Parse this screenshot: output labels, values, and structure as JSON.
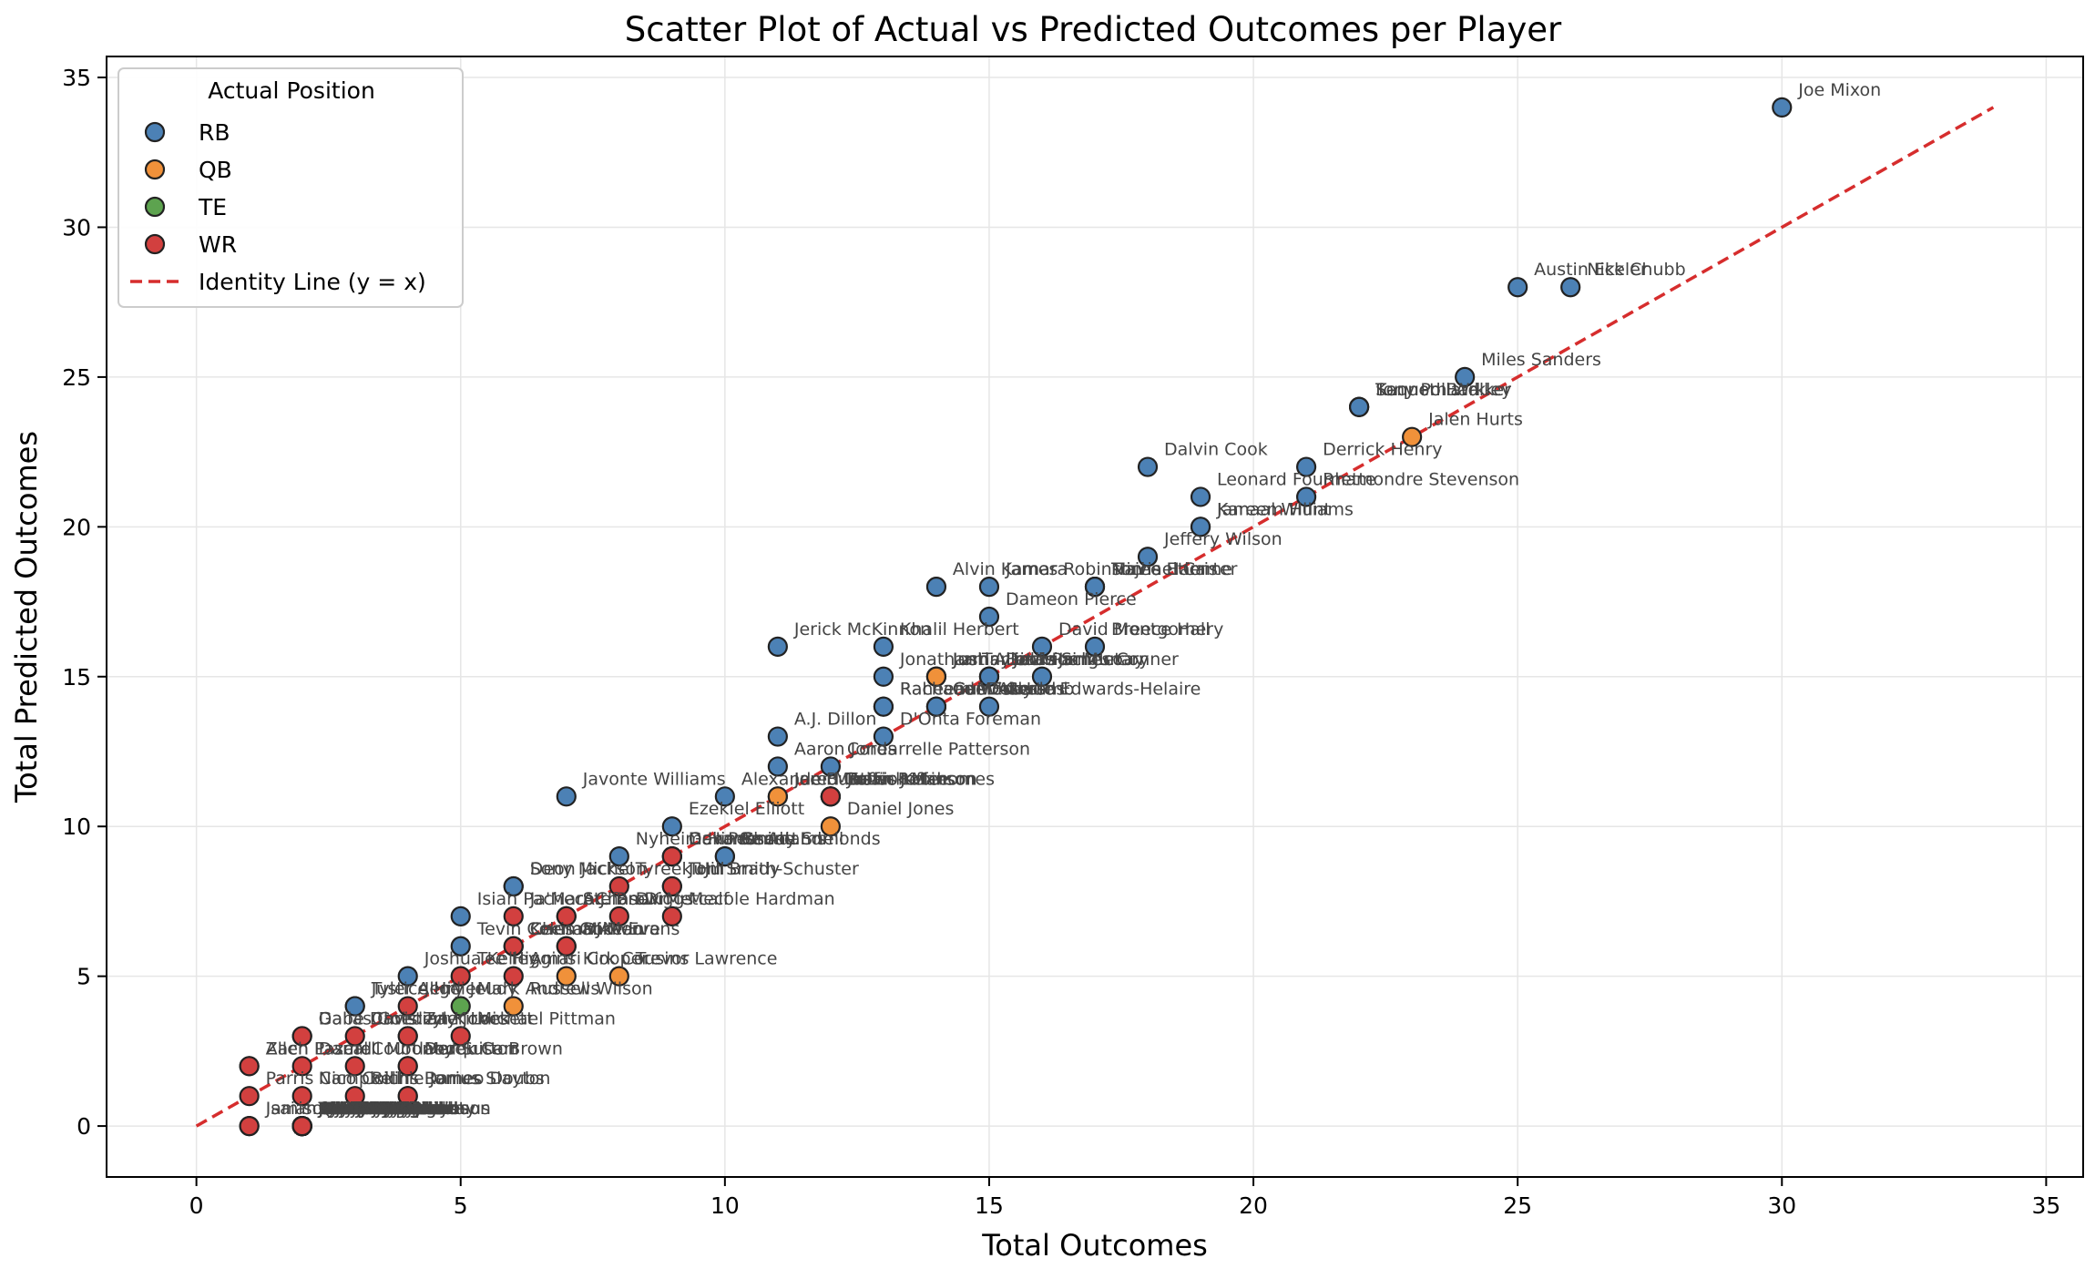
{
  "chart_data": {
    "type": "scatter",
    "title": "Scatter Plot of Actual vs Predicted Outcomes per Player",
    "xlabel": "Total Outcomes",
    "ylabel": "Total Predicted Outcomes",
    "xlim": [
      -1.7,
      35.7
    ],
    "ylim": [
      -1.7,
      35.7
    ],
    "xticks": [
      0,
      5,
      10,
      15,
      20,
      25,
      30,
      35
    ],
    "yticks": [
      0,
      5,
      10,
      15,
      20,
      25,
      30,
      35
    ],
    "grid": true,
    "legend": {
      "title": "Actual Position",
      "placement": "top-left",
      "entries": [
        "RB",
        "QB",
        "TE",
        "WR"
      ],
      "line_label": "Identity Line (y = x)"
    },
    "colors": {
      "RB": "#4C81B5",
      "QB": "#F0913A",
      "TE": "#5DA34F",
      "WR": "#D2403F",
      "identity": "#D62D2D"
    },
    "identity_line": {
      "from": [
        0,
        0
      ],
      "to": [
        34,
        34
      ]
    },
    "points": [
      {
        "x": 30,
        "y": 34,
        "pos": "RB",
        "label": "Joe Mixon"
      },
      {
        "x": 25,
        "y": 28,
        "pos": "RB",
        "label": "Austin Ekeler"
      },
      {
        "x": 26,
        "y": 28,
        "pos": "RB",
        "label": "Nick Chubb"
      },
      {
        "x": 24,
        "y": 25,
        "pos": "RB",
        "label": "Miles Sanders"
      },
      {
        "x": 22,
        "y": 24,
        "pos": "RB",
        "label": "Saquon Barkley"
      },
      {
        "x": 22,
        "y": 24,
        "pos": "RB",
        "label": "Kenneth Walker"
      },
      {
        "x": 22,
        "y": 24,
        "pos": "RB",
        "label": "Tony Pollard"
      },
      {
        "x": 23,
        "y": 23,
        "pos": "QB",
        "label": "Jalen Hurts"
      },
      {
        "x": 18,
        "y": 22,
        "pos": "RB",
        "label": "Dalvin Cook"
      },
      {
        "x": 21,
        "y": 22,
        "pos": "RB",
        "label": "Derrick Henry"
      },
      {
        "x": 19,
        "y": 21,
        "pos": "RB",
        "label": "Leonard Fournette"
      },
      {
        "x": 21,
        "y": 21,
        "pos": "RB",
        "label": "Rhamondre Stevenson"
      },
      {
        "x": 19,
        "y": 20,
        "pos": "RB",
        "label": "Jamaal Williams"
      },
      {
        "x": 19,
        "y": 20,
        "pos": "RB",
        "label": "Kareem Hunt"
      },
      {
        "x": 18,
        "y": 19,
        "pos": "RB",
        "label": "Jeffery Wilson"
      },
      {
        "x": 14,
        "y": 18,
        "pos": "RB",
        "label": "Alvin Kamara"
      },
      {
        "x": 15,
        "y": 18,
        "pos": "RB",
        "label": "James Robinson"
      },
      {
        "x": 17,
        "y": 18,
        "pos": "RB",
        "label": "Travis Etienne"
      },
      {
        "x": 17,
        "y": 18,
        "pos": "RB",
        "label": "Najee Harris"
      },
      {
        "x": 17,
        "y": 18,
        "pos": "RB",
        "label": "Michael Carter"
      },
      {
        "x": 15,
        "y": 17,
        "pos": "RB",
        "label": "Dameon Pierce"
      },
      {
        "x": 11,
        "y": 16,
        "pos": "RB",
        "label": "Jerick McKinnon"
      },
      {
        "x": 13,
        "y": 16,
        "pos": "RB",
        "label": "Khalil Herbert"
      },
      {
        "x": 16,
        "y": 16,
        "pos": "RB",
        "label": "David Montgomery"
      },
      {
        "x": 17,
        "y": 16,
        "pos": "RB",
        "label": "Breece Hall"
      },
      {
        "x": 13,
        "y": 15,
        "pos": "RB",
        "label": "Jonathan Taylor"
      },
      {
        "x": 14,
        "y": 15,
        "pos": "QB",
        "label": "Josh Allen"
      },
      {
        "x": 14,
        "y": 15,
        "pos": "QB",
        "label": "Lamar Jackson"
      },
      {
        "x": 14,
        "y": 15,
        "pos": "QB",
        "label": "Justin Fields"
      },
      {
        "x": 15,
        "y": 15,
        "pos": "RB",
        "label": "Latavius Murray"
      },
      {
        "x": 15,
        "y": 15,
        "pos": "RB",
        "label": "Devin Singletary"
      },
      {
        "x": 15,
        "y": 15,
        "pos": "RB",
        "label": "Isiah Pacheco"
      },
      {
        "x": 16,
        "y": 15,
        "pos": "RB",
        "label": "James Conner"
      },
      {
        "x": 13,
        "y": 14,
        "pos": "RB",
        "label": "Rachaad White"
      },
      {
        "x": 13,
        "y": 14,
        "pos": "RB",
        "label": "Raheem Mostert"
      },
      {
        "x": 14,
        "y": 14,
        "pos": "RB",
        "label": "Cam Akers"
      },
      {
        "x": 14,
        "y": 14,
        "pos": "WR",
        "label": "CeeDee Lamb"
      },
      {
        "x": 14,
        "y": 14,
        "pos": "RB",
        "label": "Gus Edwards"
      },
      {
        "x": 15,
        "y": 14,
        "pos": "RB",
        "label": "Clyde Edwards-Helaire"
      },
      {
        "x": 11,
        "y": 13,
        "pos": "RB",
        "label": "A.J. Dillon"
      },
      {
        "x": 13,
        "y": 13,
        "pos": "RB",
        "label": "D'Onta Foreman"
      },
      {
        "x": 11,
        "y": 12,
        "pos": "RB",
        "label": "Aaron Jones"
      },
      {
        "x": 12,
        "y": 12,
        "pos": "RB",
        "label": "Cordarrelle Patterson"
      },
      {
        "x": 7,
        "y": 11,
        "pos": "RB",
        "label": "Javonte Williams"
      },
      {
        "x": 10,
        "y": 11,
        "pos": "RB",
        "label": "Alexander Mattison"
      },
      {
        "x": 11,
        "y": 11,
        "pos": "QB",
        "label": "Joe Burrow"
      },
      {
        "x": 11,
        "y": 11,
        "pos": "QB",
        "label": "Jared Goff"
      },
      {
        "x": 12,
        "y": 11,
        "pos": "TE",
        "label": "Travis Kelce"
      },
      {
        "x": 12,
        "y": 11,
        "pos": "QB",
        "label": "Patrick Mahomes"
      },
      {
        "x": 12,
        "y": 11,
        "pos": "RB",
        "label": "Brian Robinson"
      },
      {
        "x": 12,
        "y": 11,
        "pos": "WR",
        "label": "Justin Jefferson"
      },
      {
        "x": 9,
        "y": 10,
        "pos": "RB",
        "label": "Ezekiel Elliott"
      },
      {
        "x": 12,
        "y": 10,
        "pos": "QB",
        "label": "Daniel Jones"
      },
      {
        "x": 8,
        "y": 9,
        "pos": "RB",
        "label": "Nyheim Hines"
      },
      {
        "x": 9,
        "y": 9,
        "pos": "QB",
        "label": "Dak Prescott"
      },
      {
        "x": 9,
        "y": 9,
        "pos": "QB",
        "label": "Geno Smith"
      },
      {
        "x": 9,
        "y": 9,
        "pos": "WR",
        "label": "Davante Adams"
      },
      {
        "x": 10,
        "y": 9,
        "pos": "RB",
        "label": "Chase Edmonds"
      },
      {
        "x": 10,
        "y": 9,
        "pos": "RB",
        "label": "Benny Snell"
      },
      {
        "x": 6,
        "y": 8,
        "pos": "RB",
        "label": "Deon Jackson"
      },
      {
        "x": 6,
        "y": 8,
        "pos": "RB",
        "label": "Sony Michel"
      },
      {
        "x": 8,
        "y": 8,
        "pos": "WR",
        "label": "Tyreek Hill"
      },
      {
        "x": 9,
        "y": 8,
        "pos": "QB",
        "label": "Tom Brady"
      },
      {
        "x": 9,
        "y": 8,
        "pos": "WR",
        "label": "JuJu Smith-Schuster"
      },
      {
        "x": 5,
        "y": 7,
        "pos": "RB",
        "label": "Isiah Pacheco"
      },
      {
        "x": 6,
        "y": 7,
        "pos": "WR",
        "label": "Ja'Marr Chase"
      },
      {
        "x": 7,
        "y": 7,
        "pos": "WR",
        "label": "A.J. Brown"
      },
      {
        "x": 7,
        "y": 7,
        "pos": "WR",
        "label": "Stefon Diggs"
      },
      {
        "x": 8,
        "y": 7,
        "pos": "WR",
        "label": "DK Metcalf"
      },
      {
        "x": 9,
        "y": 7,
        "pos": "WR",
        "label": "Mecole Hardman"
      },
      {
        "x": 5,
        "y": 6,
        "pos": "RB",
        "label": "Tevin Coleman"
      },
      {
        "x": 6,
        "y": 6,
        "pos": "WR",
        "label": "Keenan Allen"
      },
      {
        "x": 6,
        "y": 6,
        "pos": "WR",
        "label": "Chris Godwin"
      },
      {
        "x": 7,
        "y": 6,
        "pos": "WR",
        "label": "Mike Evans"
      },
      {
        "x": 7,
        "y": 6,
        "pos": "WR",
        "label": "DJ Moore"
      },
      {
        "x": 4,
        "y": 5,
        "pos": "RB",
        "label": "Joshua Kelley"
      },
      {
        "x": 5,
        "y": 5,
        "pos": "WR",
        "label": "Tee Higgins"
      },
      {
        "x": 6,
        "y": 5,
        "pos": "WR",
        "label": "Amari Cooper"
      },
      {
        "x": 7,
        "y": 5,
        "pos": "QB",
        "label": "Kirk Cousins"
      },
      {
        "x": 8,
        "y": 5,
        "pos": "QB",
        "label": "Trevor Lawrence"
      },
      {
        "x": 3,
        "y": 4,
        "pos": "RB",
        "label": "Justice Hill"
      },
      {
        "x": 3,
        "y": 4,
        "pos": "RB",
        "label": "Tyler Allgeier"
      },
      {
        "x": 4,
        "y": 4,
        "pos": "WR",
        "label": "Jerry Jeudy"
      },
      {
        "x": 5,
        "y": 4,
        "pos": "TE",
        "label": "Mark Andrews"
      },
      {
        "x": 6,
        "y": 4,
        "pos": "QB",
        "label": "Russell Wilson"
      },
      {
        "x": 2,
        "y": 3,
        "pos": "TE",
        "label": "Dallas Goedert"
      },
      {
        "x": 2,
        "y": 3,
        "pos": "WR",
        "label": "Gabe Davis"
      },
      {
        "x": 3,
        "y": 3,
        "pos": "WR",
        "label": "Christian Kirk"
      },
      {
        "x": 4,
        "y": 3,
        "pos": "WR",
        "label": "Tyler Lockett"
      },
      {
        "x": 4,
        "y": 3,
        "pos": "WR",
        "label": "Zay Jones"
      },
      {
        "x": 5,
        "y": 3,
        "pos": "WR",
        "label": "Michael Pittman"
      },
      {
        "x": 1,
        "y": 2,
        "pos": "WR",
        "label": "Zach Pascal"
      },
      {
        "x": 1,
        "y": 2,
        "pos": "WR",
        "label": "Allen Lazard"
      },
      {
        "x": 2,
        "y": 2,
        "pos": "WR",
        "label": "Darnell Mooney"
      },
      {
        "x": 3,
        "y": 2,
        "pos": "WR",
        "label": "Courtland Sutton"
      },
      {
        "x": 4,
        "y": 2,
        "pos": "QB",
        "label": "Derek Carr"
      },
      {
        "x": 4,
        "y": 2,
        "pos": "WR",
        "label": "Marquise Brown"
      },
      {
        "x": 1,
        "y": 1,
        "pos": "WR",
        "label": "Parris Campbell"
      },
      {
        "x": 2,
        "y": 1,
        "pos": "WR",
        "label": "Nico Collins"
      },
      {
        "x": 3,
        "y": 1,
        "pos": "WR",
        "label": "Richie James"
      },
      {
        "x": 4,
        "y": 1,
        "pos": "WR",
        "label": "Romeo Doubs"
      },
      {
        "x": 4,
        "y": 1,
        "pos": "WR",
        "label": "Darius Slayton"
      },
      {
        "x": 1,
        "y": 0,
        "pos": "WR",
        "label": "Jamison Crowder"
      },
      {
        "x": 1,
        "y": 0,
        "pos": "WR",
        "label": "Isaiah McKenzie"
      },
      {
        "x": 2,
        "y": 0,
        "pos": "WR",
        "label": "Braxton Berrios"
      },
      {
        "x": 2,
        "y": 0,
        "pos": "WR",
        "label": "Marvin Jones"
      },
      {
        "x": 2,
        "y": 0,
        "pos": "WR",
        "label": "Kendrick Bourne"
      },
      {
        "x": 2,
        "y": 0,
        "pos": "WR",
        "label": "Adam Thielen"
      },
      {
        "x": 2,
        "y": 0,
        "pos": "WR",
        "label": "Jakobi Meyers"
      },
      {
        "x": 2,
        "y": 0,
        "pos": "WR",
        "label": "Josh Reynolds"
      },
      {
        "x": 2,
        "y": 0,
        "pos": "WR",
        "label": "Nelson Agholor"
      },
      {
        "x": 2,
        "y": 0,
        "pos": "WR",
        "label": "Van Jefferson"
      },
      {
        "x": 2,
        "y": 0,
        "pos": "WR",
        "label": "Olamide Zaccheaus"
      },
      {
        "x": 2,
        "y": 0,
        "pos": "WR",
        "label": "Demarcus Robinson"
      },
      {
        "x": 2,
        "y": 0,
        "pos": "WR",
        "label": "Robert Woods"
      },
      {
        "x": 2,
        "y": 0,
        "pos": "WR",
        "label": "Kadarius Toney"
      },
      {
        "x": 2,
        "y": 0,
        "pos": "WR",
        "label": "DeVante Parker"
      },
      {
        "x": 2,
        "y": 0,
        "pos": "WR",
        "label": "Alec Pierce"
      },
      {
        "x": 2,
        "y": 0,
        "pos": "WR",
        "label": "Treylon Burks"
      },
      {
        "x": 2,
        "y": 0,
        "pos": "WR",
        "label": "K.J. Osborn"
      },
      {
        "x": 2,
        "y": 0,
        "pos": "WR",
        "label": "Mack Hollins"
      },
      {
        "x": 2,
        "y": 0,
        "pos": "WR",
        "label": "Tyler Boyd"
      },
      {
        "x": 2,
        "y": 0,
        "pos": "WR",
        "label": "Curtis Samuel"
      },
      {
        "x": 2,
        "y": 0,
        "pos": "WR",
        "label": "Corey Davis"
      },
      {
        "x": 2,
        "y": 0,
        "pos": "WR",
        "label": "Ben Skowronek"
      },
      {
        "x": 2,
        "y": 0,
        "pos": "WR",
        "label": "Chase Claypool"
      },
      {
        "x": 2,
        "y": 0,
        "pos": "WR",
        "label": "Noah Brown"
      },
      {
        "x": 2,
        "y": 0,
        "pos": "WR",
        "label": "Rondale Moore"
      },
      {
        "x": 2,
        "y": 0,
        "pos": "WR",
        "label": "Isaiah Hodgins"
      },
      {
        "x": 2,
        "y": 0,
        "pos": "WR",
        "label": "Brandin Cooks"
      },
      {
        "x": 2,
        "y": 0,
        "pos": "WR",
        "label": "Ashton Dulin"
      },
      {
        "x": 2,
        "y": 0,
        "pos": "WR",
        "label": "Allen Robinson"
      },
      {
        "x": 2,
        "y": 0,
        "pos": "WR",
        "label": "Tutu Atwell"
      },
      {
        "x": 2,
        "y": 0,
        "pos": "WR",
        "label": "Russell Gage"
      },
      {
        "x": 2,
        "y": 0,
        "pos": "WR",
        "label": "Khalil Shakir"
      },
      {
        "x": 2,
        "y": 0,
        "pos": "WR",
        "label": "Laviska Shenault"
      },
      {
        "x": 2,
        "y": 0,
        "pos": "WR",
        "label": "Jahan Dotson"
      },
      {
        "x": 2,
        "y": 0,
        "pos": "WR",
        "label": "Elijah Moore"
      },
      {
        "x": 2,
        "y": 0,
        "pos": "WR",
        "label": "Randall Cobb"
      },
      {
        "x": 2,
        "y": 0,
        "pos": "WR",
        "label": "Parris Campbell"
      },
      {
        "x": 2,
        "y": 0,
        "pos": "WR",
        "label": "Jauan Jennings"
      },
      {
        "x": 2,
        "y": 0,
        "pos": "WR",
        "label": "Skyy Moore"
      },
      {
        "x": 2,
        "y": 0,
        "pos": "WR",
        "label": "Marquez Callaway"
      },
      {
        "x": 2,
        "y": 0,
        "pos": "WR",
        "label": "Sammy Watkins"
      },
      {
        "x": 2,
        "y": 0,
        "pos": "WR",
        "label": "Kalif Raymond"
      },
      {
        "x": 2,
        "y": 0,
        "pos": "WR",
        "label": "Julio Jones"
      },
      {
        "x": 2,
        "y": 0,
        "pos": "WR",
        "label": "David Bell"
      },
      {
        "x": 2,
        "y": 0,
        "pos": "WR",
        "label": "Rashid Shaheed"
      },
      {
        "x": 2,
        "y": 0,
        "pos": "WR",
        "label": "Jalen Guyton"
      },
      {
        "x": 2,
        "y": 0,
        "pos": "WR",
        "label": "Trent Sherfield"
      },
      {
        "x": 2,
        "y": 0,
        "pos": "WR",
        "label": "Quez Watkins"
      },
      {
        "x": 2,
        "y": 0,
        "pos": "WR",
        "label": "Kyle Philips"
      },
      {
        "x": 2,
        "y": 0,
        "pos": "WR",
        "label": "DeAndre Carter"
      }
    ]
  }
}
